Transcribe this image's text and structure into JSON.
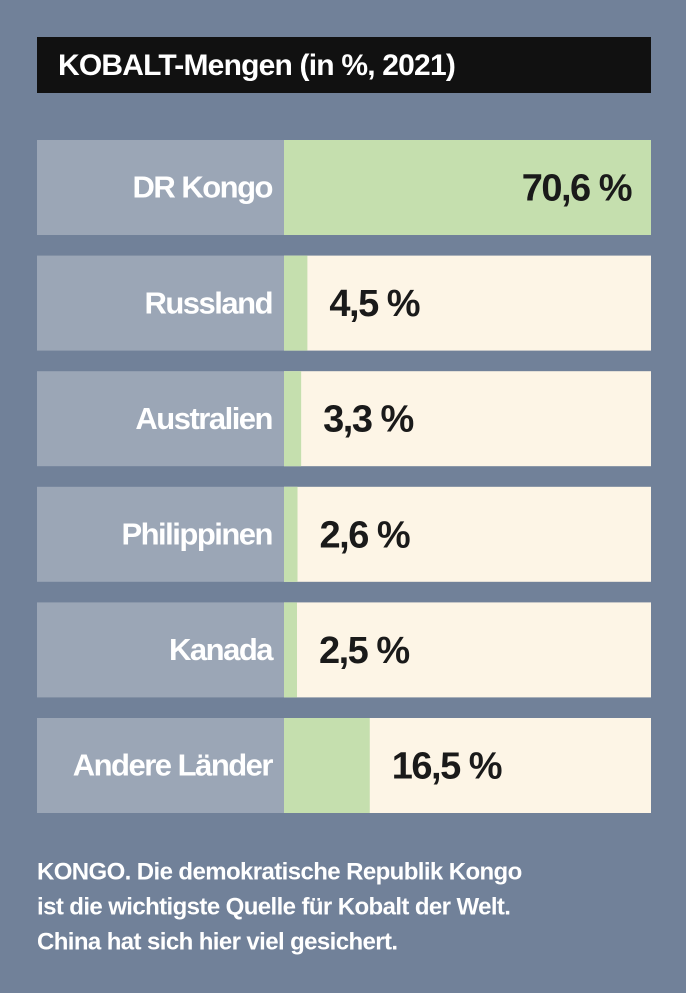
{
  "chart_data": {
    "type": "bar",
    "orientation": "horizontal",
    "title": "KOBALT-Mengen (in %, 2021)",
    "categories": [
      "DR Kongo",
      "Russland",
      "Australien",
      "Philippinen",
      "Kanada",
      "Andere Länder"
    ],
    "values": [
      70.6,
      4.5,
      3.3,
      2.6,
      2.5,
      16.5
    ],
    "value_labels": [
      "70,6 %",
      "4,5 %",
      "3,3 %",
      "2,6 %",
      "2,5 %",
      "16,5 %"
    ],
    "color": "#c5dfae",
    "annotations": [
      "KONGO. Die demokratische Republik Kongo",
      "ist die wichtigste Quelle für Kobalt der Welt.",
      "China hat sich hier viel gesichert."
    ]
  }
}
